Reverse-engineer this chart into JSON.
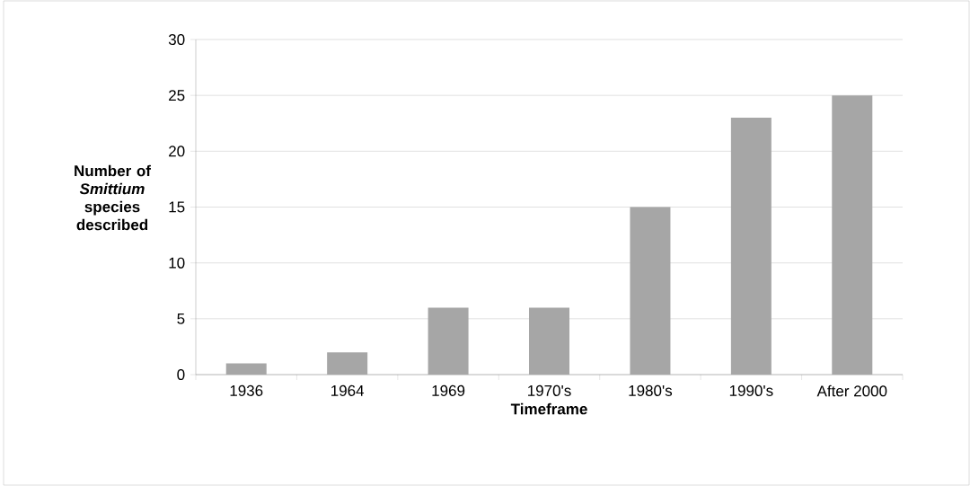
{
  "chart_data": {
    "type": "bar",
    "xlabel": "Timeframe",
    "ylabel": "Number of *Smittium* species described",
    "categories": [
      "1936",
      "1964",
      "1969",
      "1970's",
      "1980's",
      "1990's",
      "After 2000"
    ],
    "values": [
      1,
      2,
      6,
      6,
      15,
      23,
      25
    ],
    "color": "#a6a6a6",
    "ylim": [
      0,
      30
    ],
    "yticks": [
      0,
      5,
      10,
      15,
      20,
      25,
      30
    ],
    "grid": "y"
  }
}
